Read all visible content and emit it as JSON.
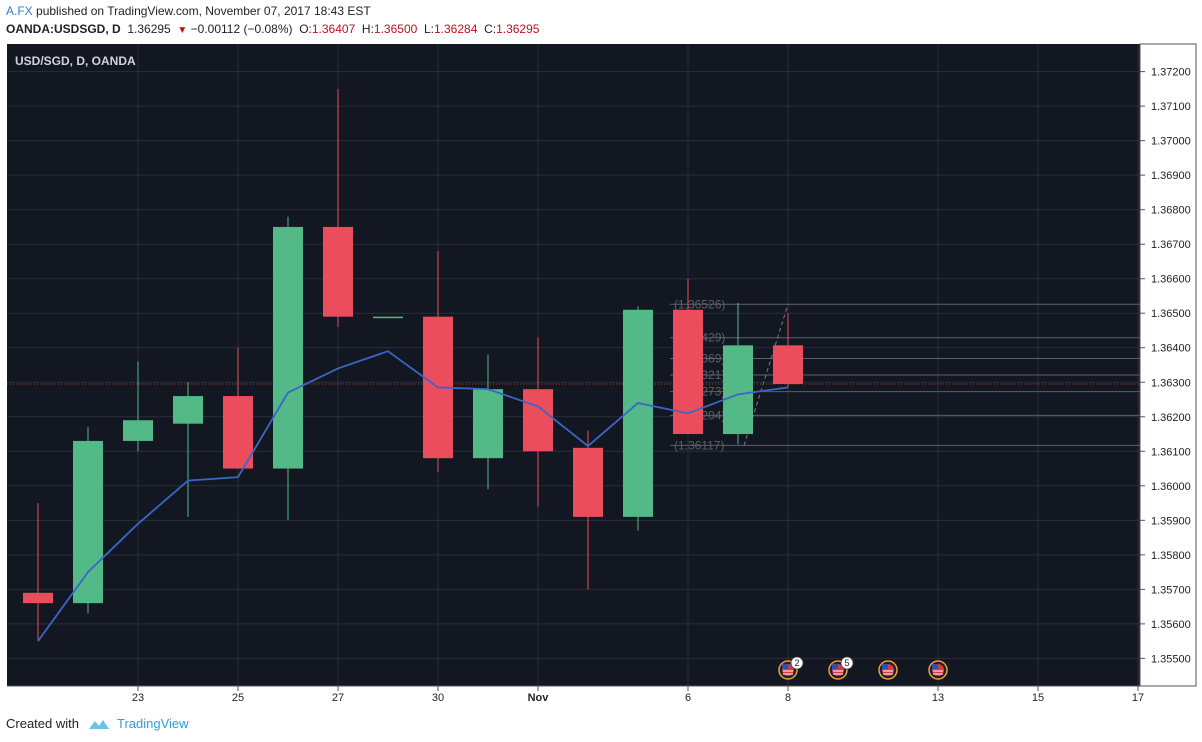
{
  "header": {
    "author": "A.FX",
    "published": "published on TradingView.com, November 07, 2017 18:43 EST",
    "symbol_line": "OANDA:USDSGD, D",
    "last": "1.36295",
    "change": "−0.00112 (−0.08%)",
    "open_label": "O:",
    "open": "1.36407",
    "high_label": "H:",
    "high": "1.36500",
    "low_label": "L:",
    "low": "1.36284",
    "close_label": "C:",
    "close": "1.36295"
  },
  "colors": {
    "background": "#131722",
    "grid": "#2a2e39",
    "bull": "#53b987",
    "bear": "#eb4d5c",
    "ma_line": "#3a66c8",
    "price_line": "#c0392b",
    "axis_text": "#222222"
  },
  "chart_data": {
    "type": "candlestick",
    "title": "USD/SGD, D, OANDA",
    "ylim": [
      1.3542,
      1.3728
    ],
    "y_ticks": [
      "1.37200",
      "1.37100",
      "1.37000",
      "1.36900",
      "1.36800",
      "1.36700",
      "1.36600",
      "1.36500",
      "1.36400",
      "1.36300",
      "1.36200",
      "1.36100",
      "1.36000",
      "1.35900",
      "1.35800",
      "1.35700",
      "1.35600",
      "1.35500"
    ],
    "x_tick_labels": [
      {
        "label": "23",
        "bar": 2
      },
      {
        "label": "25",
        "bar": 4
      },
      {
        "label": "27",
        "bar": 6
      },
      {
        "label": "30",
        "bar": 8
      },
      {
        "label": "Nov",
        "bar": 10
      },
      {
        "label": "6",
        "bar": 13
      },
      {
        "label": "8",
        "bar": 15
      },
      {
        "label": "13",
        "bar": 18
      },
      {
        "label": "15",
        "bar": 20
      },
      {
        "label": "17",
        "bar": 22
      }
    ],
    "candles": [
      {
        "o": 1.3569,
        "h": 1.3595,
        "l": 1.3555,
        "c": 1.3566
      },
      {
        "o": 1.3566,
        "h": 1.3617,
        "l": 1.3563,
        "c": 1.3613
      },
      {
        "o": 1.3613,
        "h": 1.3636,
        "l": 1.361,
        "c": 1.3619
      },
      {
        "o": 1.3618,
        "h": 1.363,
        "l": 1.3591,
        "c": 1.3626
      },
      {
        "o": 1.3626,
        "h": 1.364,
        "l": 1.3605,
        "c": 1.3605
      },
      {
        "o": 1.3605,
        "h": 1.3678,
        "l": 1.359,
        "c": 1.3675
      },
      {
        "o": 1.3675,
        "h": 1.3715,
        "l": 1.3646,
        "c": 1.3649
      },
      {
        "o": 1.3649,
        "h": 1.3649,
        "l": 1.3649,
        "c": 1.3649
      },
      {
        "o": 1.3649,
        "h": 1.3668,
        "l": 1.3604,
        "c": 1.3608
      },
      {
        "o": 1.3608,
        "h": 1.3638,
        "l": 1.3599,
        "c": 1.3628
      },
      {
        "o": 1.3628,
        "h": 1.3643,
        "l": 1.3594,
        "c": 1.361
      },
      {
        "o": 1.3611,
        "h": 1.3616,
        "l": 1.357,
        "c": 1.3591
      },
      {
        "o": 1.3591,
        "h": 1.3652,
        "l": 1.3587,
        "c": 1.3651
      },
      {
        "o": 1.3651,
        "h": 1.366,
        "l": 1.3615,
        "c": 1.3615
      },
      {
        "o": 1.3615,
        "h": 1.3653,
        "l": 1.3612,
        "c": 1.36407
      },
      {
        "o": 1.36407,
        "h": 1.365,
        "l": 1.36284,
        "c": 1.36295
      }
    ],
    "moving_average": [
      {
        "bar": 0,
        "v": 1.3555
      },
      {
        "bar": 1,
        "v": 1.3575
      },
      {
        "bar": 2,
        "v": 1.3589
      },
      {
        "bar": 3,
        "v": 1.36015
      },
      {
        "bar": 4,
        "v": 1.36025
      },
      {
        "bar": 5,
        "v": 1.3627
      },
      {
        "bar": 6,
        "v": 1.3634
      },
      {
        "bar": 7,
        "v": 1.3639
      },
      {
        "bar": 8,
        "v": 1.36285
      },
      {
        "bar": 9,
        "v": 1.3628
      },
      {
        "bar": 10,
        "v": 1.3623
      },
      {
        "bar": 11,
        "v": 1.36115
      },
      {
        "bar": 12,
        "v": 1.3624
      },
      {
        "bar": 13,
        "v": 1.3621
      },
      {
        "bar": 14,
        "v": 1.36265
      },
      {
        "bar": 15,
        "v": 1.36285
      }
    ],
    "last_price": 1.36295,
    "fib_levels": [
      {
        "label": "(1.36526)",
        "v": 1.36526
      },
      {
        "label": "(1.36429)",
        "v": 1.36429
      },
      {
        "label": "(1.36369)",
        "v": 1.36369
      },
      {
        "label": "(1.36321)",
        "v": 1.36321
      },
      {
        "label": "(1.36273)",
        "v": 1.36273
      },
      {
        "label": "(1.36204)",
        "v": 1.36204
      },
      {
        "label": "(1.36117)",
        "v": 1.36117
      }
    ],
    "events": [
      {
        "bar": 15,
        "badge": "2"
      },
      {
        "bar": 16,
        "badge": "5"
      },
      {
        "bar": 17,
        "badge": ""
      },
      {
        "bar": 18,
        "badge": ""
      }
    ]
  },
  "footer": {
    "created_with": "Created with",
    "brand": "TradingView"
  }
}
